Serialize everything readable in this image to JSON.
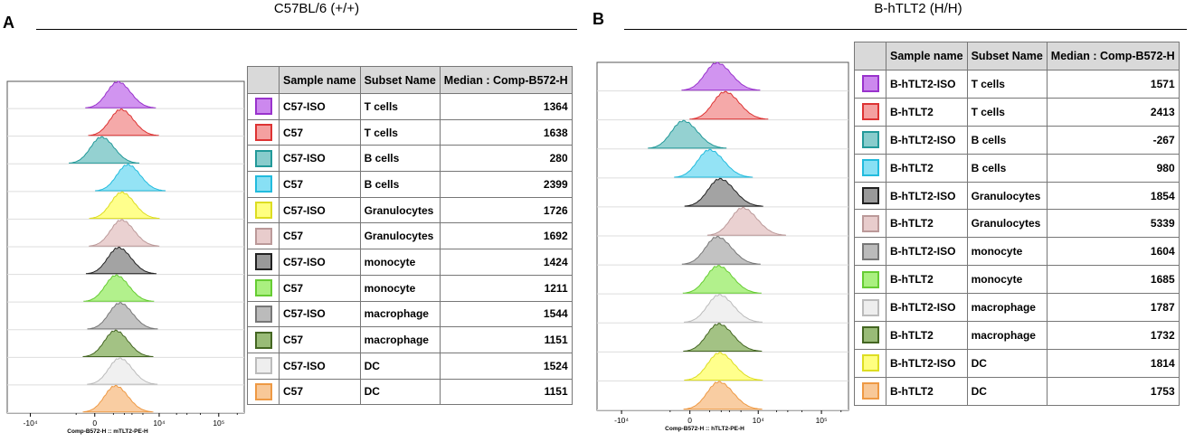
{
  "panels": [
    {
      "letter": "A",
      "title": "C57BL/6 (+/+)",
      "table_headers": [
        "",
        "Sample name",
        "Subset Name",
        "Median : Comp-B572-H"
      ],
      "rows": [
        {
          "sample": "C57-ISO",
          "subset": "T cells",
          "median": "1364",
          "fill": "#cc88ee",
          "stroke": "#9933cc"
        },
        {
          "sample": "C57",
          "subset": "T cells",
          "median": "1638",
          "fill": "#f4a0a0",
          "stroke": "#dd3333"
        },
        {
          "sample": "C57-ISO",
          "subset": "B cells",
          "median": "280",
          "fill": "#88cccc",
          "stroke": "#229999"
        },
        {
          "sample": "C57",
          "subset": "B cells",
          "median": "2399",
          "fill": "#88e0f4",
          "stroke": "#22bbdd"
        },
        {
          "sample": "C57-ISO",
          "subset": "Granulocytes",
          "median": "1726",
          "fill": "#ffff80",
          "stroke": "#dddd22"
        },
        {
          "sample": "C57",
          "subset": "Granulocytes",
          "median": "1692",
          "fill": "#e8cccc",
          "stroke": "#bb9999"
        },
        {
          "sample": "C57-ISO",
          "subset": "monocyte",
          "median": "1424",
          "fill": "#999999",
          "stroke": "#222222"
        },
        {
          "sample": "C57",
          "subset": "monocyte",
          "median": "1211",
          "fill": "#aaf080",
          "stroke": "#66cc33"
        },
        {
          "sample": "C57-ISO",
          "subset": "macrophage",
          "median": "1544",
          "fill": "#bbbbbb",
          "stroke": "#777777"
        },
        {
          "sample": "C57",
          "subset": "macrophage",
          "median": "1151",
          "fill": "#99bb77",
          "stroke": "#446622"
        },
        {
          "sample": "C57-ISO",
          "subset": "DC",
          "median": "1524",
          "fill": "#eeeeee",
          "stroke": "#bbbbbb"
        },
        {
          "sample": "C57",
          "subset": "DC",
          "median": "1151",
          "fill": "#f8c898",
          "stroke": "#ee9944"
        }
      ],
      "x_axis_label": "Comp-B572-H :: mTLT2-PE-H",
      "x_ticks": [
        "-10⁴",
        "0",
        "10⁴",
        "10⁵"
      ]
    },
    {
      "letter": "B",
      "title": "B-hTLT2 (H/H)",
      "table_headers": [
        "",
        "Sample name",
        "Subset Name",
        "Median : Comp-B572-H"
      ],
      "rows": [
        {
          "sample": "B-hTLT2-ISO",
          "subset": "T cells",
          "median": "1571",
          "fill": "#cc88ee",
          "stroke": "#9933cc"
        },
        {
          "sample": "B-hTLT2",
          "subset": "T cells",
          "median": "2413",
          "fill": "#f4a0a0",
          "stroke": "#dd3333"
        },
        {
          "sample": "B-hTLT2-ISO",
          "subset": "B cells",
          "median": "-267",
          "fill": "#88cccc",
          "stroke": "#229999"
        },
        {
          "sample": "B-hTLT2",
          "subset": "B cells",
          "median": "980",
          "fill": "#88e0f4",
          "stroke": "#22bbdd"
        },
        {
          "sample": "B-hTLT2-ISO",
          "subset": "Granulocytes",
          "median": "1854",
          "fill": "#999999",
          "stroke": "#222222"
        },
        {
          "sample": "B-hTLT2",
          "subset": "Granulocytes",
          "median": "5339",
          "fill": "#e8cccc",
          "stroke": "#bb9999"
        },
        {
          "sample": "B-hTLT2-ISO",
          "subset": "monocyte",
          "median": "1604",
          "fill": "#bbbbbb",
          "stroke": "#777777"
        },
        {
          "sample": "B-hTLT2",
          "subset": "monocyte",
          "median": "1685",
          "fill": "#aaf080",
          "stroke": "#66cc33"
        },
        {
          "sample": "B-hTLT2-ISO",
          "subset": "macrophage",
          "median": "1787",
          "fill": "#eeeeee",
          "stroke": "#bbbbbb"
        },
        {
          "sample": "B-hTLT2",
          "subset": "macrophage",
          "median": "1732",
          "fill": "#99bb77",
          "stroke": "#446622"
        },
        {
          "sample": "B-hTLT2-ISO",
          "subset": "DC",
          "median": "1814",
          "fill": "#ffff80",
          "stroke": "#dddd22"
        },
        {
          "sample": "B-hTLT2",
          "subset": "DC",
          "median": "1753",
          "fill": "#f8c898",
          "stroke": "#ee9944"
        }
      ],
      "x_axis_label": "Comp-B572-H :: hTLT2-PE-H",
      "x_ticks": [
        "-10⁴",
        "0",
        "10⁴",
        "10⁵"
      ]
    }
  ],
  "chart_data": [
    {
      "type": "histogram",
      "title": "C57BL/6 (+/+)",
      "xlabel": "Comp-B572-H :: mTLT2-PE-H",
      "x_scale": "biexponential",
      "x_ticks": [
        "-10⁴",
        "0",
        "10⁴",
        "10⁵"
      ],
      "series": [
        {
          "name": "C57-ISO T cells",
          "median": 1364
        },
        {
          "name": "C57 T cells",
          "median": 1638
        },
        {
          "name": "C57-ISO B cells",
          "median": 280
        },
        {
          "name": "C57 B cells",
          "median": 2399
        },
        {
          "name": "C57-ISO Granulocytes",
          "median": 1726
        },
        {
          "name": "C57 Granulocytes",
          "median": 1692
        },
        {
          "name": "C57-ISO monocyte",
          "median": 1424
        },
        {
          "name": "C57 monocyte",
          "median": 1211
        },
        {
          "name": "C57-ISO macrophage",
          "median": 1544
        },
        {
          "name": "C57 macrophage",
          "median": 1151
        },
        {
          "name": "C57-ISO DC",
          "median": 1524
        },
        {
          "name": "C57 DC",
          "median": 1151
        }
      ]
    },
    {
      "type": "histogram",
      "title": "B-hTLT2 (H/H)",
      "xlabel": "Comp-B572-H :: hTLT2-PE-H",
      "x_scale": "biexponential",
      "x_ticks": [
        "-10⁴",
        "0",
        "10⁴",
        "10⁵"
      ],
      "series": [
        {
          "name": "B-hTLT2-ISO T cells",
          "median": 1571
        },
        {
          "name": "B-hTLT2 T cells",
          "median": 2413
        },
        {
          "name": "B-hTLT2-ISO B cells",
          "median": -267
        },
        {
          "name": "B-hTLT2 B cells",
          "median": 980
        },
        {
          "name": "B-hTLT2-ISO Granulocytes",
          "median": 1854
        },
        {
          "name": "B-hTLT2 Granulocytes",
          "median": 5339
        },
        {
          "name": "B-hTLT2-ISO monocyte",
          "median": 1604
        },
        {
          "name": "B-hTLT2 monocyte",
          "median": 1685
        },
        {
          "name": "B-hTLT2-ISO macrophage",
          "median": 1787
        },
        {
          "name": "B-hTLT2 macrophage",
          "median": 1732
        },
        {
          "name": "B-hTLT2-ISO DC",
          "median": 1814
        },
        {
          "name": "B-hTLT2 DC",
          "median": 1753
        }
      ]
    }
  ]
}
